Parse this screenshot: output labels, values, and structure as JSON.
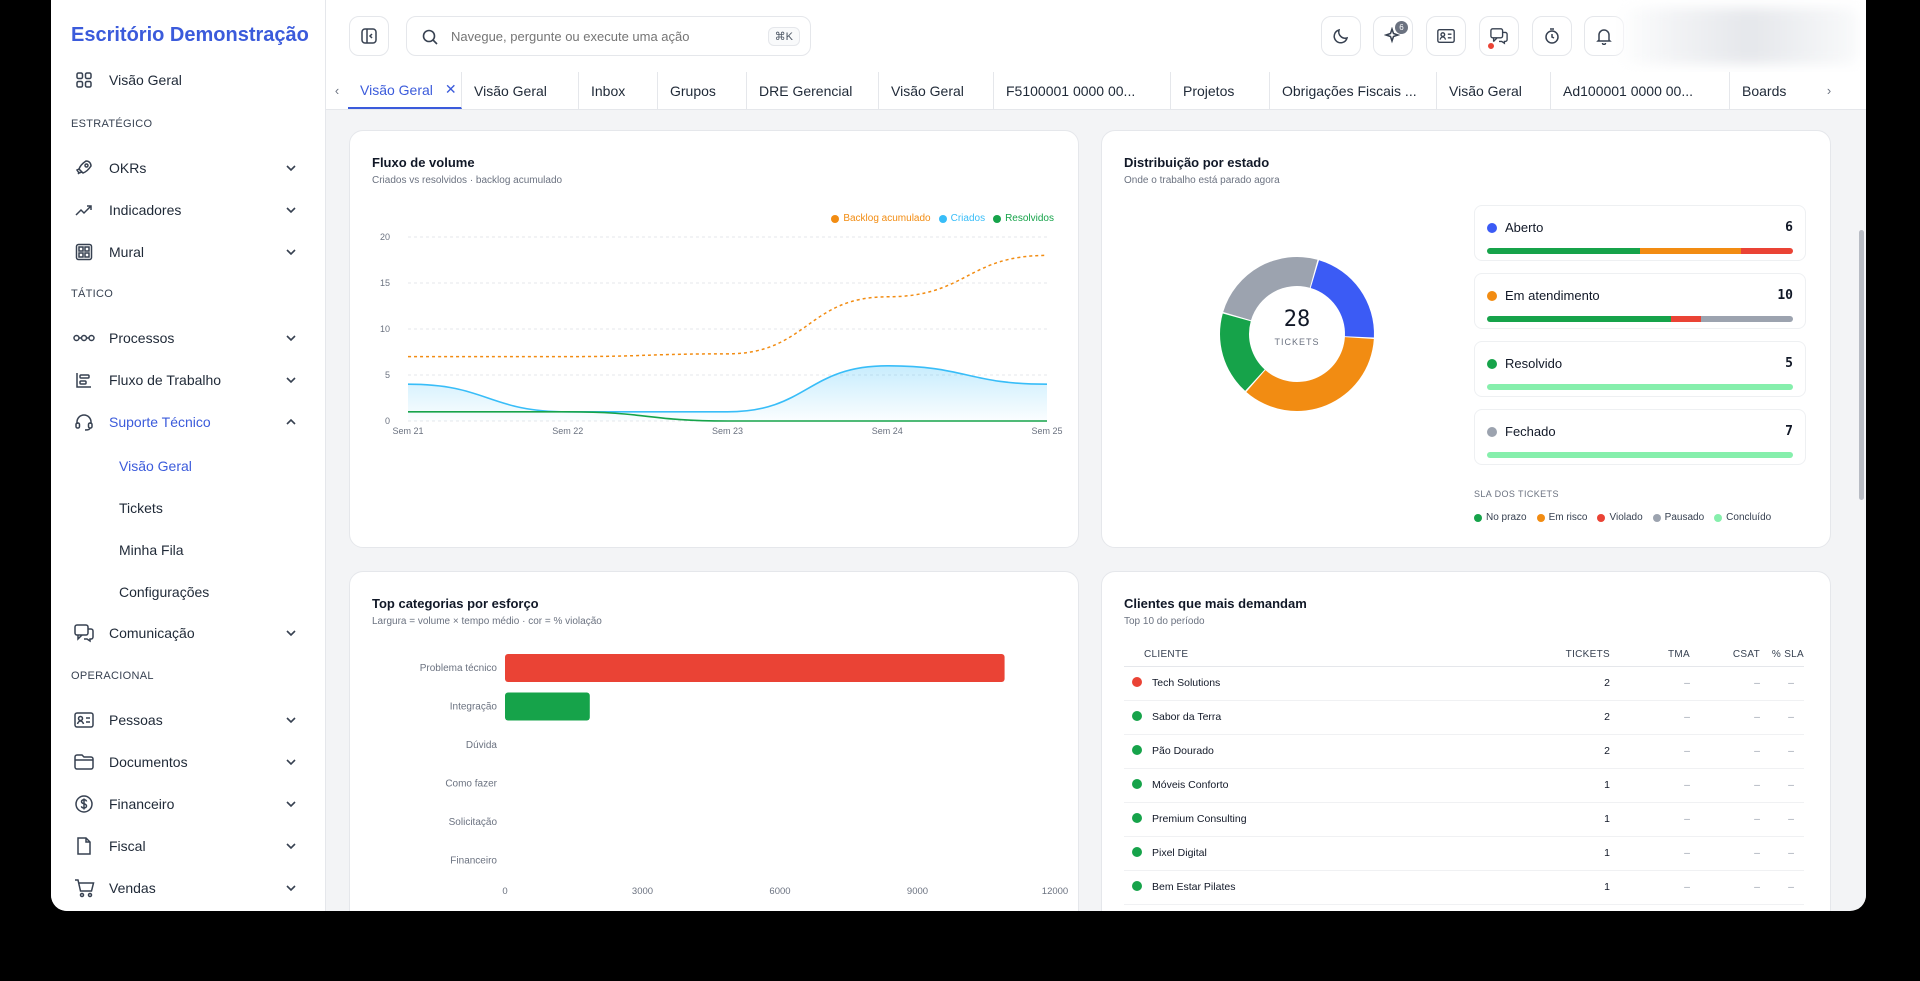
{
  "app": {
    "brand": "Escritório Demonstração"
  },
  "colors": {
    "accent": "#3b5bdb",
    "green": "#16a34a",
    "orange": "#f28c12",
    "red": "#ea4335",
    "gray": "#9ca3af",
    "blue": "#3b5bf5",
    "sky": "#38bdf8",
    "lightgreen": "#86efac"
  },
  "sidebar": {
    "overview": "Visão Geral",
    "sections": {
      "strategic": "ESTRATÉGICO",
      "tactical": "TÁTICO",
      "operational": "OPERACIONAL"
    },
    "items": {
      "okrs": "OKRs",
      "indicadores": "Indicadores",
      "mural": "Mural",
      "processos": "Processos",
      "fluxo": "Fluxo de Trabalho",
      "suporte": "Suporte Técnico",
      "comunicacao": "Comunicação",
      "pessoas": "Pessoas",
      "documentos": "Documentos",
      "financeiro": "Financeiro",
      "fiscal": "Fiscal",
      "vendas": "Vendas"
    },
    "suporte_sub": [
      "Visão Geral",
      "Tickets",
      "Minha Fila",
      "Configurações"
    ]
  },
  "topbar": {
    "search_placeholder": "Navegue, pergunte ou execute uma ação",
    "shortcut": "⌘K",
    "ai_badge": "6"
  },
  "tabs": [
    "Visão Geral",
    "Visão Geral",
    "Inbox",
    "Grupos",
    "DRE Gerencial",
    "Visão Geral",
    "F5100001 0000 00...",
    "Projetos",
    "Obrigações Fiscais ...",
    "Visão Geral",
    "Ad100001 0000 00...",
    "Boards"
  ],
  "volume": {
    "title": "Fluxo de volume",
    "subtitle": "Criados vs resolvidos · backlog acumulado",
    "legend": [
      "Backlog acumulado",
      "Criados",
      "Resolvidos"
    ]
  },
  "distribution": {
    "title": "Distribuição por estado",
    "subtitle": "Onde o trabalho está parado agora",
    "total": "28",
    "total_label": "TICKETS",
    "states": [
      {
        "name": "Aberto",
        "count": "6"
      },
      {
        "name": "Em atendimento",
        "count": "10"
      },
      {
        "name": "Resolvido",
        "count": "5"
      },
      {
        "name": "Fechado",
        "count": "7"
      }
    ],
    "sla_title": "SLA DOS TICKETS",
    "sla_legend": [
      "No prazo",
      "Em risco",
      "Violado",
      "Pausado",
      "Concluído"
    ]
  },
  "categories": {
    "title": "Top categorias por esforço",
    "subtitle": "Largura = volume × tempo médio · cor = % violação"
  },
  "clients": {
    "title": "Clientes que mais demandam",
    "subtitle": "Top 10 do período",
    "headers": [
      "CLIENTE",
      "TICKETS",
      "TMA",
      "CSAT",
      "% SLA"
    ],
    "rows": [
      {
        "name": "Tech Solutions",
        "tickets": "2",
        "tma": "–",
        "csat": "–",
        "sla": "–",
        "status": "red"
      },
      {
        "name": "Sabor da Terra",
        "tickets": "2",
        "tma": "–",
        "csat": "–",
        "sla": "–",
        "status": "green"
      },
      {
        "name": "Pão Dourado",
        "tickets": "2",
        "tma": "–",
        "csat": "–",
        "sla": "–",
        "status": "green"
      },
      {
        "name": "Móveis Conforto",
        "tickets": "1",
        "tma": "–",
        "csat": "–",
        "sla": "–",
        "status": "green"
      },
      {
        "name": "Premium Consulting",
        "tickets": "1",
        "tma": "–",
        "csat": "–",
        "sla": "–",
        "status": "green"
      },
      {
        "name": "Pixel Digital",
        "tickets": "1",
        "tma": "–",
        "csat": "–",
        "sla": "–",
        "status": "green"
      },
      {
        "name": "Bem Estar Pilates",
        "tickets": "1",
        "tma": "–",
        "csat": "–",
        "sla": "–",
        "status": "green"
      }
    ]
  },
  "chart_data": [
    {
      "type": "line",
      "x": [
        "Sem 21",
        "Sem 22",
        "Sem 23",
        "Sem 24",
        "Sem 25"
      ],
      "ylim": [
        0,
        20
      ],
      "yticks": [
        "0",
        "5",
        "10",
        "15",
        "20"
      ],
      "series": [
        {
          "name": "Backlog acumulado",
          "values": [
            7,
            7,
            7.3,
            13.5,
            18
          ],
          "color": "#f28c12",
          "style": "dashed"
        },
        {
          "name": "Criados",
          "values": [
            4,
            1,
            1,
            6,
            4
          ],
          "color": "#38bdf8",
          "style": "area"
        },
        {
          "name": "Resolvidos",
          "values": [
            1,
            1,
            0,
            0,
            0
          ],
          "color": "#16a34a",
          "style": "solid"
        }
      ],
      "grid": true,
      "legend": "top-right"
    },
    {
      "type": "pie",
      "categories": [
        "Aberto",
        "Em atendimento",
        "Resolvido",
        "Fechado"
      ],
      "values": [
        6,
        10,
        5,
        7
      ],
      "colors": [
        "#3b5bf5",
        "#f28c12",
        "#16a34a",
        "#9ca3af"
      ],
      "bars": [
        [
          {
            "v": 50,
            "c": "#16a34a"
          },
          {
            "v": 33,
            "c": "#f28c12"
          },
          {
            "v": 17,
            "c": "#ea4335"
          }
        ],
        [
          {
            "v": 60,
            "c": "#16a34a"
          },
          {
            "v": 10,
            "c": "#ea4335"
          },
          {
            "v": 30,
            "c": "#9ca3af"
          }
        ],
        [
          {
            "v": 100,
            "c": "#86efac"
          }
        ],
        [
          {
            "v": 100,
            "c": "#86efac"
          }
        ]
      ]
    },
    {
      "type": "bar",
      "orientation": "horizontal",
      "categories": [
        "Problema técnico",
        "Integração",
        "Dúvida",
        "Como fazer",
        "Solicitação",
        "Financeiro"
      ],
      "values": [
        10900,
        1850,
        0,
        0,
        0,
        0
      ],
      "colors": [
        "#ea4335",
        "#16a34a",
        "#16a34a",
        "#16a34a",
        "#16a34a",
        "#16a34a"
      ],
      "xlim": [
        0,
        12000
      ],
      "xticks": [
        "0",
        "3000",
        "6000",
        "9000",
        "12000"
      ]
    }
  ]
}
